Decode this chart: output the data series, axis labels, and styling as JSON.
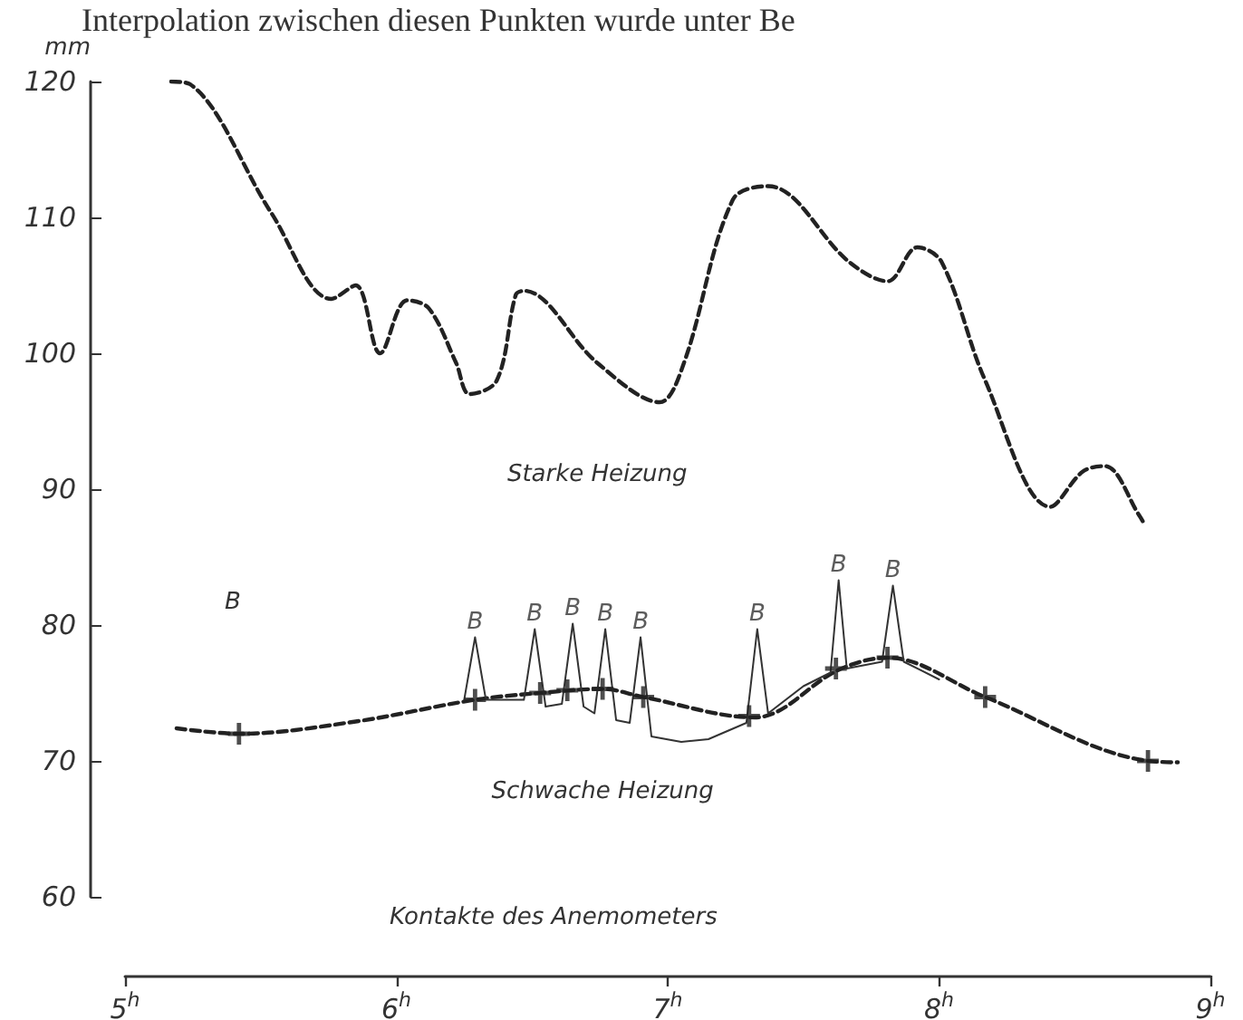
{
  "chart_data": {
    "type": "line",
    "ylabel": "mm",
    "xlim": [
      5,
      9
    ],
    "ylim": [
      60,
      120
    ],
    "yticks": [
      60,
      70,
      80,
      90,
      100,
      110,
      120
    ],
    "xticks": [
      {
        "value": 5,
        "label": "5$^{h}$"
      },
      {
        "value": 6,
        "label": "6$^{h}$"
      },
      {
        "value": 7,
        "label": "7$^{h}$"
      },
      {
        "value": 8,
        "label": "8$^{h}$"
      },
      {
        "value": 9,
        "label": "9$^{h}$"
      }
    ],
    "grid": false,
    "legend": false,
    "line_style": "dashed",
    "marker": "none",
    "series": [
      {
        "name": "Starke Heizung",
        "color": "#222222",
        "x": [
          5.17,
          5.24,
          5.54,
          5.76,
          5.85,
          5.94,
          6.04,
          6.12,
          6.22,
          6.27,
          6.37,
          6.44,
          6.47,
          6.74,
          6.97,
          7.06,
          7.24,
          7.37,
          7.67,
          7.81,
          7.92,
          8.01,
          8.17,
          8.41,
          8.53,
          8.61,
          8.74,
          8.76
        ],
        "values": [
          120,
          119.8,
          110.3,
          104,
          105,
          100,
          103.9,
          103.3,
          99.3,
          97,
          98,
          104.3,
          104.6,
          99.3,
          96.4,
          99.3,
          111.3,
          112.3,
          106.7,
          105.3,
          107.8,
          106.7,
          98,
          88.7,
          91.3,
          91.7,
          88,
          87.3
        ]
      },
      {
        "name": "Schwache Heizung",
        "color": "#222222",
        "x": [
          5.19,
          5.42,
          5.85,
          6.29,
          6.53,
          6.76,
          6.91,
          7.32,
          7.63,
          7.81,
          8.17,
          8.77,
          8.88
        ],
        "values": [
          72.4,
          72,
          72.9,
          74.5,
          75,
          75.3,
          74.7,
          73.2,
          76.7,
          77.6,
          74.7,
          70,
          69.9
        ]
      },
      {
        "color": "#333333",
        "line_style": "solid",
        "x": [
          6.25,
          6.29,
          6.33,
          6.47,
          6.51,
          6.55,
          6.61,
          6.65,
          6.69,
          6.73,
          6.77,
          6.81,
          6.86,
          6.9,
          6.94,
          7.05,
          7.15,
          7.29,
          7.33,
          7.37,
          7.5,
          7.6,
          7.63,
          7.66,
          7.79,
          7.83,
          7.87,
          8.0
        ],
        "values": [
          74.5,
          79.1,
          74.5,
          74.5,
          79.7,
          74,
          74.2,
          80.1,
          74,
          73.5,
          79.7,
          73,
          72.8,
          79.1,
          71.8,
          71.4,
          71.6,
          72.8,
          79.7,
          73.5,
          75.5,
          76.5,
          83.3,
          76.8,
          77.3,
          82.9,
          77.3,
          76
        ]
      },
      {
        "type": "scatter",
        "marker": "cross",
        "color": "#222222",
        "x": [
          5.42,
          6.29,
          6.53,
          6.63,
          6.76,
          6.91,
          7.3,
          7.62,
          7.81,
          8.17,
          8.77
        ],
        "values": [
          72,
          74.5,
          75,
          75.2,
          75.3,
          74.7,
          73.3,
          76.8,
          77.6,
          74.7,
          70
        ]
      }
    ],
    "annotations": [
      "Interpolation zwischen diesen Punkten wurde unter Be",
      "Kontakte des Anemometers",
      "B",
      {
        "text": "B",
        "x": 6.29,
        "y": 79.1
      },
      {
        "text": "B",
        "x": 6.51,
        "y": 79.7
      },
      {
        "text": "B",
        "x": 6.65,
        "y": 80.1
      },
      {
        "text": "B",
        "x": 6.77,
        "y": 79.7
      },
      {
        "text": "B",
        "x": 6.9,
        "y": 79.1
      },
      {
        "text": "B",
        "x": 7.33,
        "y": 79.7
      },
      {
        "text": "B",
        "x": 7.63,
        "y": 83.3
      },
      {
        "text": "B",
        "x": 7.83,
        "y": 82.9
      }
    ]
  }
}
